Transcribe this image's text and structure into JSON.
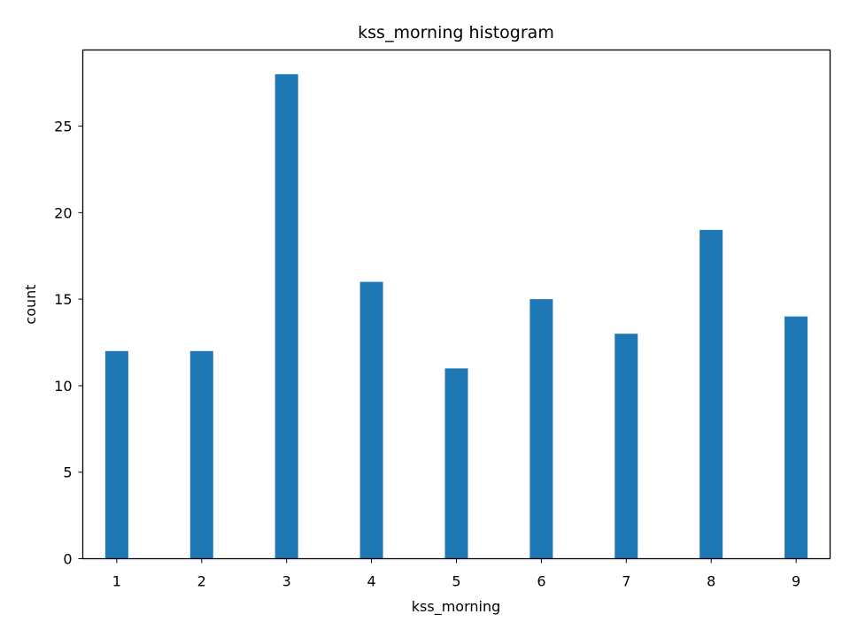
{
  "chart_data": {
    "type": "bar",
    "title": "kss_morning histogram",
    "xlabel": "kss_morning",
    "ylabel": "count",
    "x": [
      1,
      2,
      3,
      4,
      5,
      6,
      7,
      8,
      9
    ],
    "values": [
      12,
      12,
      28,
      16,
      11,
      15,
      13,
      19,
      14
    ],
    "xlim": [
      0.6,
      9.4
    ],
    "ylim": [
      0,
      29.4
    ],
    "xticks": [
      1,
      2,
      3,
      4,
      5,
      6,
      7,
      8,
      9
    ],
    "yticks": [
      0,
      5,
      10,
      15,
      20,
      25
    ],
    "grid": false,
    "bar_color": "#1f77b4"
  }
}
